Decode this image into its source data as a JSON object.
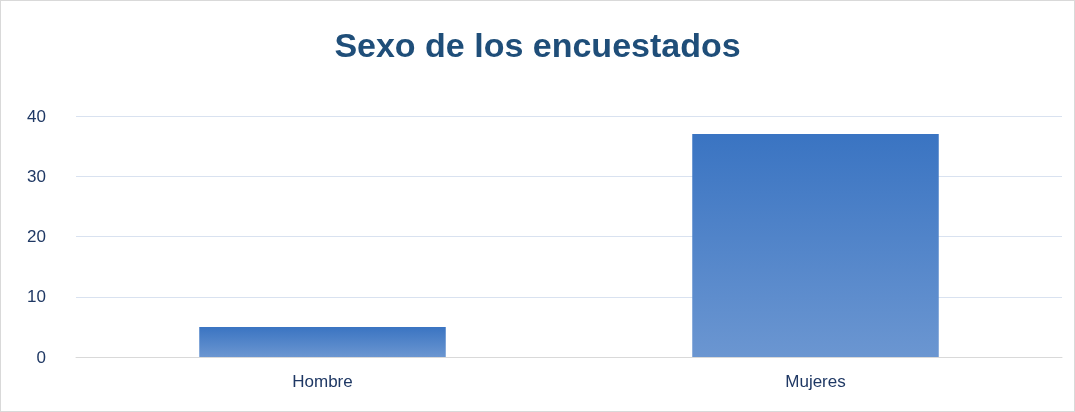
{
  "chart_data": {
    "type": "bar",
    "title": "Sexo de los encuestados",
    "categories": [
      "Hombre",
      "Mujeres"
    ],
    "values": [
      5,
      37
    ],
    "color": "#3a74c2",
    "ylim": [
      0,
      40
    ],
    "yticks": [
      0,
      10,
      20,
      30,
      40
    ],
    "grid": "y"
  }
}
